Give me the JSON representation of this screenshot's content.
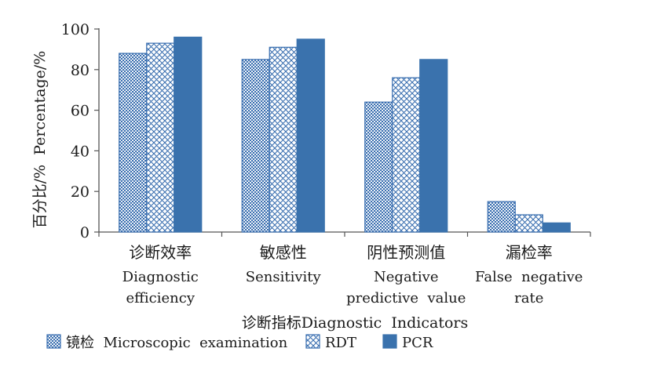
{
  "chart_data": {
    "type": "bar",
    "categories": [
      {
        "cn": "诊断效率",
        "en": [
          "Diagnostic",
          "efficiency"
        ]
      },
      {
        "cn": "敏感性",
        "en": [
          "Sensitivity"
        ]
      },
      {
        "cn": "阴性预测值",
        "en": [
          "Negative",
          "predictive  value"
        ]
      },
      {
        "cn": "漏检率",
        "en": [
          "False  negative",
          "rate"
        ]
      }
    ],
    "series": [
      {
        "name": "镜检  Microscopic  examination",
        "pattern": "dots",
        "color": "#3a6fb0",
        "values": [
          88,
          85,
          64,
          15
        ]
      },
      {
        "name": "RDT",
        "pattern": "crosshatch",
        "color": "#3a6fb0",
        "values": [
          93,
          91,
          76,
          8.5
        ]
      },
      {
        "name": "PCR",
        "pattern": "solid",
        "color": "#3a72ad",
        "values": [
          96,
          95,
          85,
          4.5
        ]
      }
    ],
    "ylabel": "百分比/%  Percentage/%",
    "xlabel": "诊断指标Diagnostic  Indicators",
    "ylim": [
      0,
      100
    ],
    "yticks": [
      0,
      20,
      40,
      60,
      80,
      100
    ],
    "grid": false,
    "legend_position": "bottom-left"
  }
}
